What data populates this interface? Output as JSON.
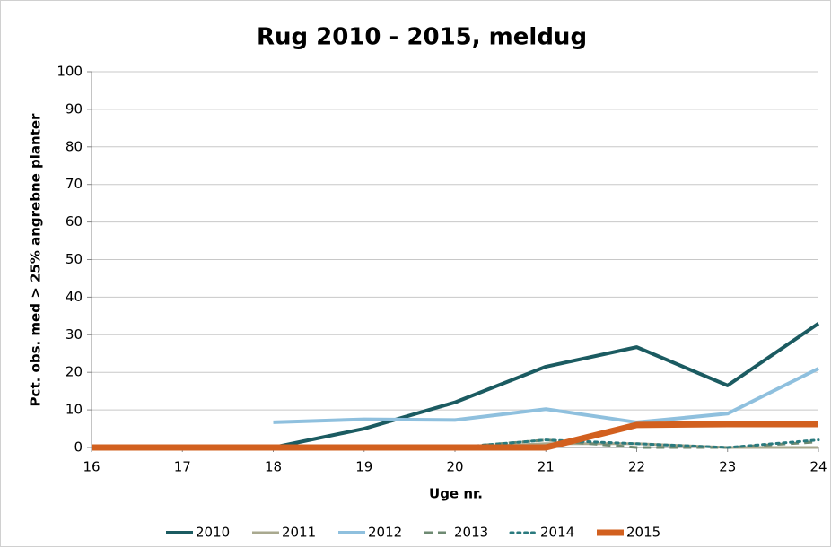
{
  "chart_data": {
    "type": "line",
    "title": "Rug 2010 - 2015, meldug",
    "x_label": "Uge nr.",
    "y_label": "Pct. obs. med > 25% angrebne planter",
    "x": [
      16,
      17,
      18,
      19,
      20,
      21,
      22,
      23,
      24
    ],
    "xlim": [
      16,
      24
    ],
    "xticks": [
      16,
      17,
      18,
      19,
      20,
      21,
      22,
      23,
      24
    ],
    "ylim": [
      0,
      100
    ],
    "yticks": [
      0,
      10,
      20,
      30,
      40,
      50,
      60,
      70,
      80,
      90,
      100
    ],
    "grid": true,
    "legend": "bottom",
    "series": [
      {
        "name": "2010",
        "color": "#1b5b61",
        "width": 4,
        "dash": "solid",
        "values": [
          null,
          null,
          0,
          5,
          12,
          21.5,
          26.7,
          16.5,
          33
        ]
      },
      {
        "name": "2011",
        "color": "#a9a98f",
        "width": 3,
        "dash": "solid",
        "values": [
          null,
          null,
          null,
          null,
          0,
          1,
          1,
          0,
          0
        ]
      },
      {
        "name": "2012",
        "color": "#8fc0de",
        "width": 4,
        "dash": "solid",
        "values": [
          null,
          null,
          6.7,
          7.5,
          7.3,
          10.2,
          6.7,
          9,
          21
        ]
      },
      {
        "name": "2013",
        "color": "#6e8a72",
        "width": 3,
        "dash": "dashed",
        "values": [
          null,
          null,
          null,
          null,
          0,
          2,
          0,
          0,
          1.5
        ]
      },
      {
        "name": "2014",
        "color": "#2a7a7e",
        "width": 3,
        "dash": "dotted",
        "values": [
          null,
          null,
          null,
          null,
          0,
          2,
          1,
          0,
          2
        ]
      },
      {
        "name": "2015",
        "color": "#d2601f",
        "width": 7,
        "dash": "solid",
        "values": [
          0,
          0,
          0,
          0,
          0,
          0,
          6,
          6.2,
          6.2
        ]
      }
    ]
  }
}
